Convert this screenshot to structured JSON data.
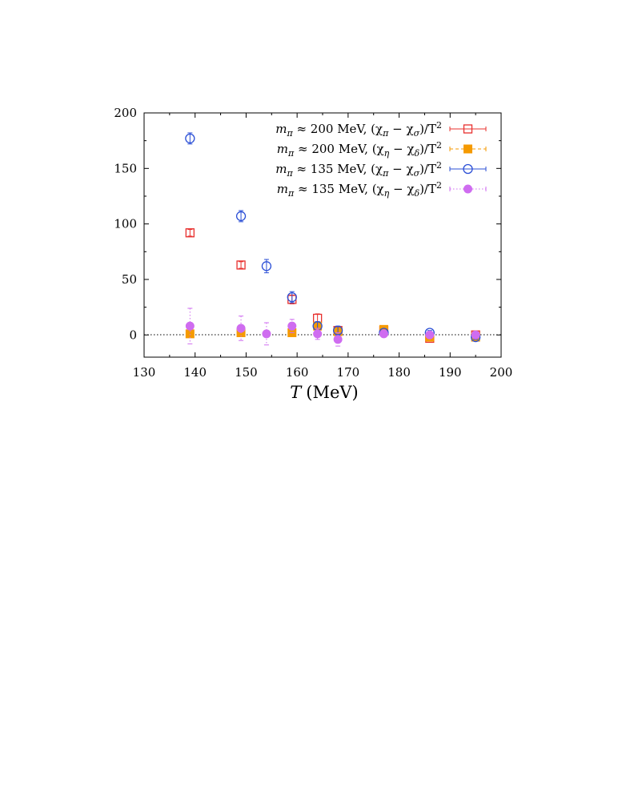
{
  "chart_data": {
    "type": "scatter",
    "xlabel_symbol": "T",
    "xlabel_unit": "(MeV)",
    "ylabel": "",
    "xlim": [
      130,
      200
    ],
    "ylim": [
      -20,
      200
    ],
    "x_ticks": [
      "130",
      "140",
      "150",
      "160",
      "170",
      "180",
      "190",
      "200"
    ],
    "y_ticks": [
      "0",
      "50",
      "100",
      "150",
      "200"
    ],
    "zero_line": true,
    "grid": false,
    "legend_position": "top-right",
    "series": [
      {
        "name": "mπ ≈ 200 MeV, (χπMS − χσMS)/T²",
        "legend": {
          "m": "m",
          "m_sub": "π",
          "rel": " ≈ 200 MeV, (χ",
          "a": "π",
          "mid": " − χ",
          "b": "σ",
          "tail": ")/T"
        },
        "color": "#e8302e",
        "marker": "open-square",
        "line": "solid",
        "points": [
          {
            "x": 139,
            "y": 92,
            "err": 3
          },
          {
            "x": 149,
            "y": 63,
            "err": 3
          },
          {
            "x": 159,
            "y": 32,
            "err": 4
          },
          {
            "x": 164,
            "y": 15,
            "err": 4
          },
          {
            "x": 168,
            "y": 4,
            "err": 3
          },
          {
            "x": 177,
            "y": 4,
            "err": 2
          },
          {
            "x": 186,
            "y": -3,
            "err": 2
          },
          {
            "x": 195,
            "y": 0,
            "err": 2
          }
        ]
      },
      {
        "name": "mπ ≈ 200 MeV, (χηMS − χδMS)/T²",
        "legend": {
          "m": "m",
          "m_sub": "π",
          "rel": " ≈ 200 MeV, (χ",
          "a": "η",
          "mid": " − χ",
          "b": "δ",
          "tail": ")/T"
        },
        "color": "#f59a00",
        "marker": "filled-square",
        "line": "dashed",
        "points": [
          {
            "x": 139,
            "y": 1,
            "err": 2
          },
          {
            "x": 149,
            "y": 2,
            "err": 2
          },
          {
            "x": 159,
            "y": 2,
            "err": 2
          },
          {
            "x": 164,
            "y": 8,
            "err": 2
          },
          {
            "x": 168,
            "y": 3,
            "err": 2
          },
          {
            "x": 177,
            "y": 5,
            "err": 2
          },
          {
            "x": 186,
            "y": -2,
            "err": 2
          },
          {
            "x": 195,
            "y": -2,
            "err": 2
          }
        ]
      },
      {
        "name": "mπ ≈ 135 MeV, (χπMS − χσMS)/T²",
        "legend": {
          "m": "m",
          "m_sub": "π",
          "rel": " ≈ 135 MeV, (χ",
          "a": "π",
          "mid": " − χ",
          "b": "σ",
          "tail": ")/T"
        },
        "color": "#2b4fd6",
        "marker": "open-circle",
        "line": "solid",
        "points": [
          {
            "x": 139,
            "y": 177,
            "err": 5
          },
          {
            "x": 149,
            "y": 107,
            "err": 5
          },
          {
            "x": 154,
            "y": 62,
            "err": 6
          },
          {
            "x": 159,
            "y": 34,
            "err": 5
          },
          {
            "x": 164,
            "y": 8,
            "err": 4
          },
          {
            "x": 168,
            "y": 4,
            "err": 4
          },
          {
            "x": 177,
            "y": 2,
            "err": 2
          },
          {
            "x": 186,
            "y": 2,
            "err": 2
          },
          {
            "x": 195,
            "y": -2,
            "err": 2
          }
        ]
      },
      {
        "name": "mπ ≈ 135 MeV, (χηMS − χδMS)/T²",
        "legend": {
          "m": "m",
          "m_sub": "π",
          "rel": " ≈ 135 MeV, (χ",
          "a": "η",
          "mid": " − χ",
          "b": "δ",
          "tail": ")/T"
        },
        "color": "#cf6cf0",
        "marker": "filled-circle",
        "line": "dotted",
        "points": [
          {
            "x": 139,
            "y": 8,
            "err": 16
          },
          {
            "x": 149,
            "y": 6,
            "err": 11
          },
          {
            "x": 154,
            "y": 1,
            "err": 10
          },
          {
            "x": 159,
            "y": 8,
            "err": 6
          },
          {
            "x": 164,
            "y": 1,
            "err": 5
          },
          {
            "x": 168,
            "y": -4,
            "err": 6
          },
          {
            "x": 177,
            "y": 1,
            "err": 2
          },
          {
            "x": 186,
            "y": 0,
            "err": 2
          },
          {
            "x": 195,
            "y": 0,
            "err": 2
          }
        ]
      }
    ]
  }
}
